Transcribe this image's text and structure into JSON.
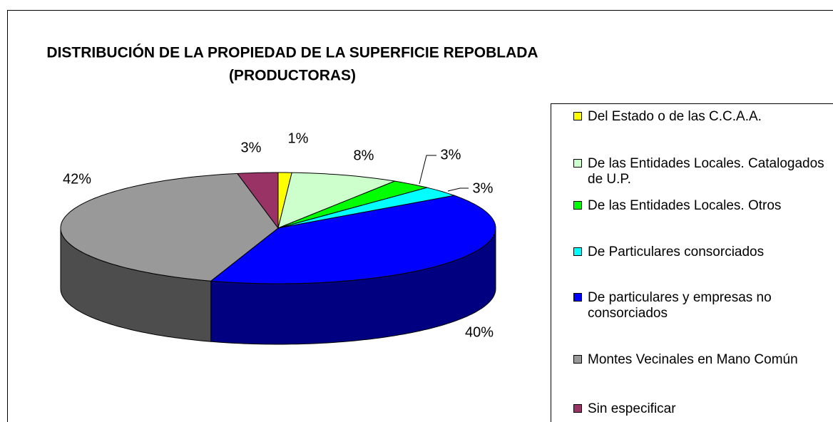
{
  "chart_data": {
    "type": "pie3d",
    "title": [
      "DISTRIBUCIÓN DE LA PROPIEDAD DE LA SUPERFICIE REPOBLADA",
      "(PRODUCTORAS)"
    ],
    "categories": [
      "Del Estado o de las C.C.A.A.",
      "De las Entidades Locales. Catalogados de U.P.",
      "De las Entidades Locales. Otros",
      "De Particulares consorciados",
      "De particulares y empresas no consorciados",
      "Montes Vecinales en Mano Común",
      "Sin especificar"
    ],
    "values": [
      1,
      8,
      3,
      3,
      40,
      42,
      3
    ],
    "value_labels": [
      "1%",
      "8%",
      "3%",
      "3%",
      "40%",
      "42%",
      "3%"
    ],
    "colors": [
      "#ffff00",
      "#ccffcc",
      "#00ff00",
      "#00ffff",
      "#0000ff",
      "#999999",
      "#993366"
    ],
    "legend": "right"
  }
}
